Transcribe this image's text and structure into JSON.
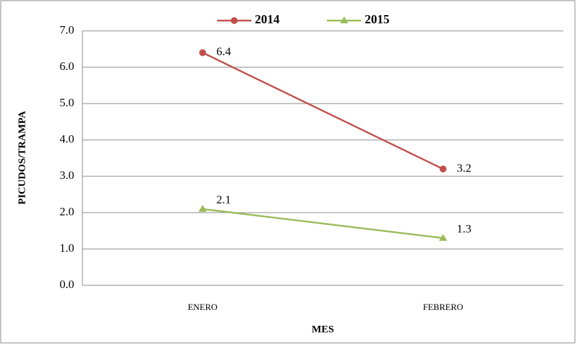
{
  "chart_data": {
    "type": "line",
    "categories": [
      "ENERO",
      "FEBRERO"
    ],
    "series": [
      {
        "name": "2014",
        "color": "#c0504d",
        "marker": "circle",
        "values": [
          6.4,
          3.2
        ]
      },
      {
        "name": "2015",
        "color": "#9bbb59",
        "marker": "triangle",
        "values": [
          2.1,
          1.3
        ]
      }
    ],
    "ylabel": "PICUDOS/TRAMPA",
    "xlabel": "MES",
    "ylim": [
      0,
      7
    ],
    "yticks": [
      {
        "value": 0,
        "label": "0.0"
      },
      {
        "value": 1,
        "label": "1.0"
      },
      {
        "value": 2,
        "label": "2.0"
      },
      {
        "value": 3,
        "label": "3.0"
      },
      {
        "value": 4,
        "label": "4.0"
      },
      {
        "value": 5,
        "label": "5.0"
      },
      {
        "value": 6,
        "label": "6.0"
      },
      {
        "value": 7,
        "label": "7.0"
      }
    ],
    "grid": true,
    "legend": "top"
  }
}
